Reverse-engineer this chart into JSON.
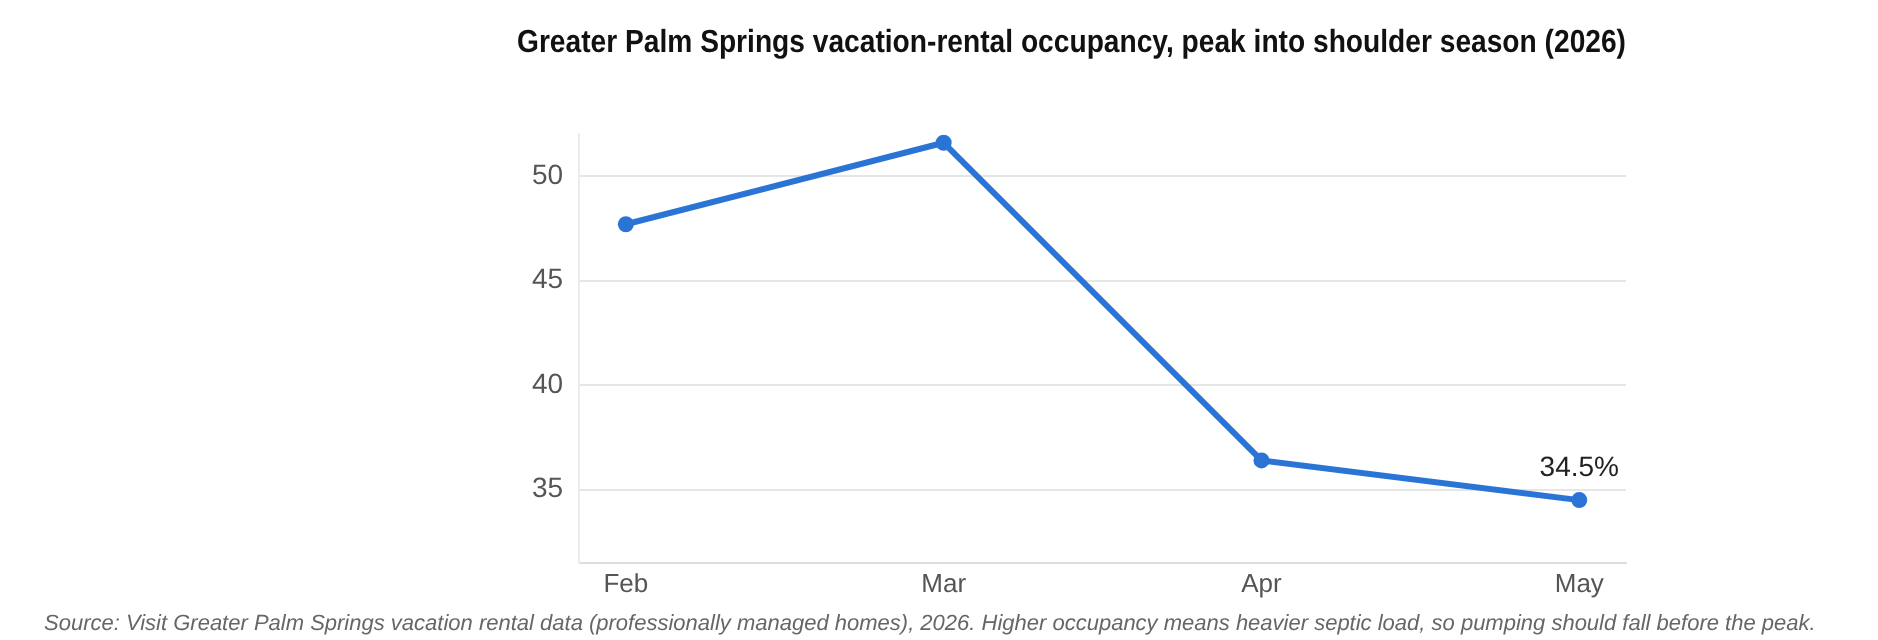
{
  "chart_data": {
    "type": "line",
    "title": "Greater Palm Springs vacation-rental occupancy, peak into shoulder season (2026)",
    "categories": [
      "Feb",
      "Mar",
      "Apr",
      "May"
    ],
    "series": [
      {
        "color": "#2a74d6",
        "values": [
          47.7,
          51.6,
          36.4,
          34.5
        ],
        "value_labels": [
          null,
          null,
          null,
          "34.5%"
        ]
      }
    ],
    "ylim": [
      31.5,
      52
    ],
    "yticks": [
      35,
      40,
      45,
      50
    ],
    "grid": "y",
    "marker": "circle",
    "line_style": "solid",
    "legend": false,
    "annotations": [
      "Source: Visit Greater Palm Springs vacation rental data (professionally managed homes), 2026. Higher occupancy means heavier septic load, so pumping should fall before the peak."
    ]
  }
}
